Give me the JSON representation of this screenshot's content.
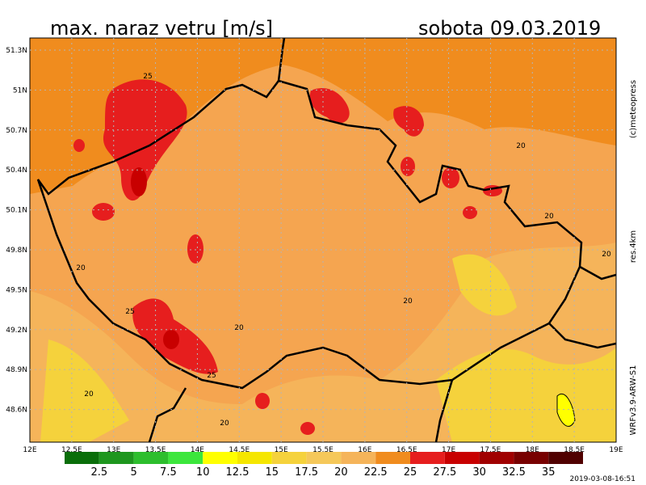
{
  "header": {
    "title": "max. naraz vetru [m/s]",
    "date": "sobota 09.03.2019"
  },
  "side": {
    "copyright": "(c)meteopress",
    "resolution": "res.4km",
    "model": "WRFv3.9-ARW-S1"
  },
  "footer": {
    "timestamp": "2019-03-08-16:51"
  },
  "map": {
    "lat_labels": [
      "51.3N",
      "51N",
      "50.7N",
      "50.4N",
      "50.1N",
      "49.8N",
      "49.5N",
      "49.2N",
      "48.9N",
      "48.6N"
    ],
    "lon_labels": [
      "12E",
      "12.5E",
      "13E",
      "13.5E",
      "14E",
      "14.5E",
      "15E",
      "15.5E",
      "16E",
      "16.5E",
      "17E",
      "17.5E",
      "18E",
      "18.5E",
      "19E"
    ],
    "contour_labels": [
      "25",
      "20",
      "20",
      "20",
      "20",
      "20",
      "25",
      "20",
      "25",
      "20",
      "20"
    ]
  },
  "legend": {
    "colors": [
      "#0a6e0a",
      "#1e961e",
      "#2dbe2d",
      "#3ce63c",
      "#ffff00",
      "#f5e600",
      "#f5d23c",
      "#f5c85a",
      "#f5b45a",
      "#f08c1e",
      "#e61e1e",
      "#c80000",
      "#a00000",
      "#780000",
      "#500000"
    ],
    "labels": [
      "2.5",
      "5",
      "7.5",
      "10",
      "12.5",
      "15",
      "17.5",
      "20",
      "22.5",
      "25",
      "27.5",
      "30",
      "32.5",
      "35"
    ]
  }
}
